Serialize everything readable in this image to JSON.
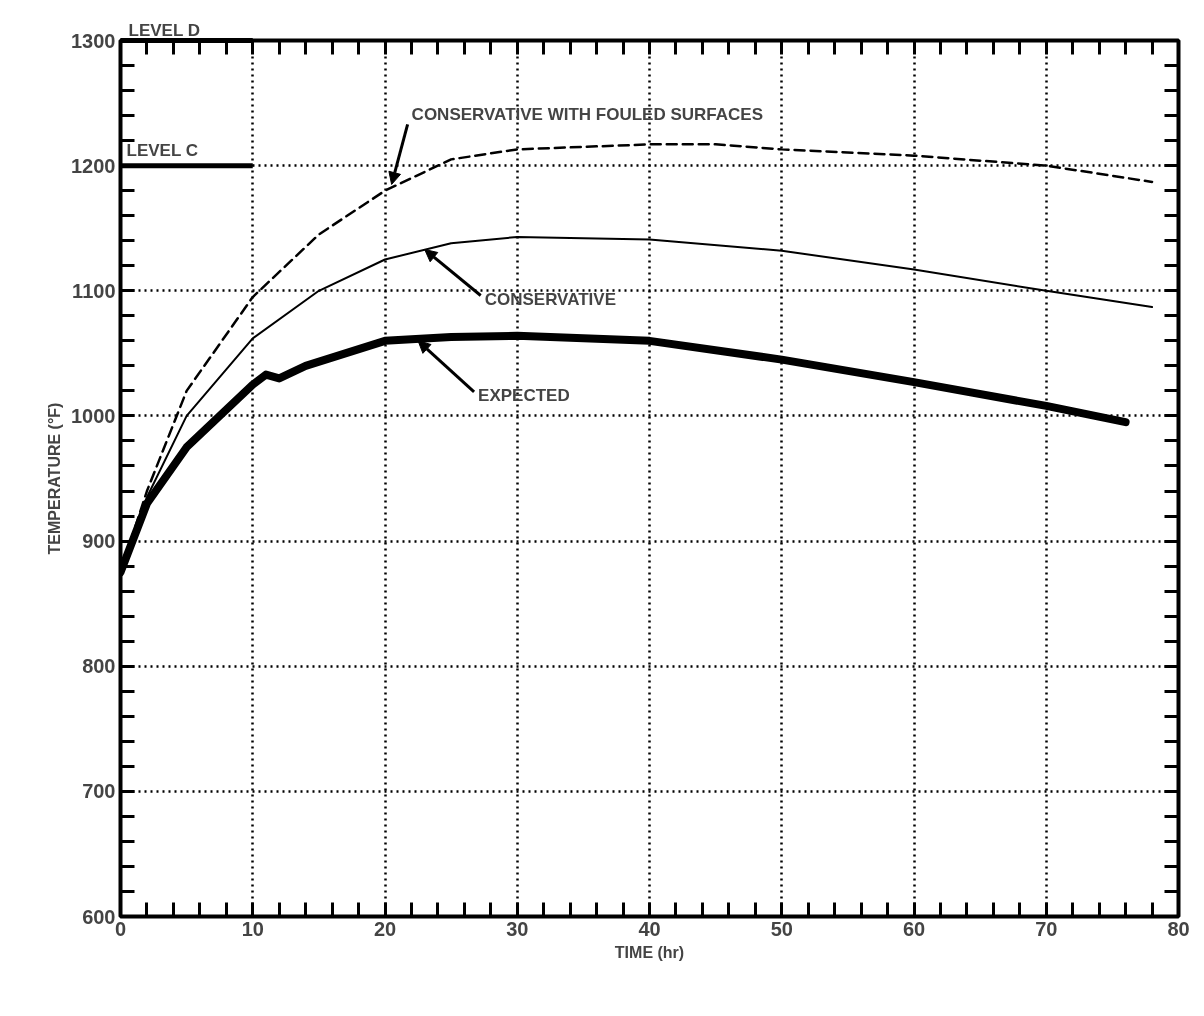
{
  "chart_data": {
    "type": "line",
    "xlabel": "TIME (hr)",
    "ylabel": "TEMPERATURE (°F)",
    "xlim": [
      0,
      80
    ],
    "ylim": [
      600,
      1300
    ],
    "xticks": [
      0,
      10,
      20,
      30,
      40,
      50,
      60,
      70,
      80
    ],
    "yticks": [
      600,
      700,
      800,
      900,
      1000,
      1100,
      1200,
      1300
    ],
    "grid": true,
    "marker": "none",
    "series": [
      {
        "color": "#000000",
        "line_style": "dashed",
        "x": [
          0,
          2,
          5,
          10,
          15,
          20,
          25,
          30,
          40,
          45,
          50,
          60,
          70,
          78
        ],
        "values": [
          875,
          940,
          1020,
          1095,
          1145,
          1180,
          1205,
          1213,
          1217,
          1217,
          1213,
          1208,
          1200,
          1187
        ]
      },
      {
        "color": "#000000",
        "line_style": "solid",
        "x": [
          0,
          2,
          5,
          10,
          15,
          20,
          25,
          30,
          40,
          50,
          60,
          70,
          78
        ],
        "values": [
          875,
          935,
          1000,
          1062,
          1100,
          1125,
          1138,
          1143,
          1141,
          1132,
          1117,
          1100,
          1087
        ]
      },
      {
        "color": "#000000",
        "line_style": "solid",
        "x": [
          0,
          2,
          5,
          10,
          11,
          12,
          14,
          20,
          25,
          30,
          40,
          50,
          60,
          70,
          76
        ],
        "values": [
          875,
          930,
          975,
          1025,
          1033,
          1030,
          1040,
          1060,
          1063,
          1064,
          1060,
          1045,
          1027,
          1008,
          995
        ]
      }
    ],
    "ref_lines": [
      {
        "axis": "y",
        "value": 1300,
        "label": "LEVEL D"
      },
      {
        "axis": "y",
        "value": 1200,
        "label": "LEVEL C"
      }
    ],
    "annotations": [
      {
        "text": "CONSERVATIVE WITH FOULED SURFACES",
        "x": 20.5,
        "y": 1185
      },
      {
        "text": "CONSERVATIVE",
        "x": 23,
        "y": 1133
      },
      {
        "text": "EXPECTED",
        "x": 22.5,
        "y": 1060
      }
    ]
  }
}
